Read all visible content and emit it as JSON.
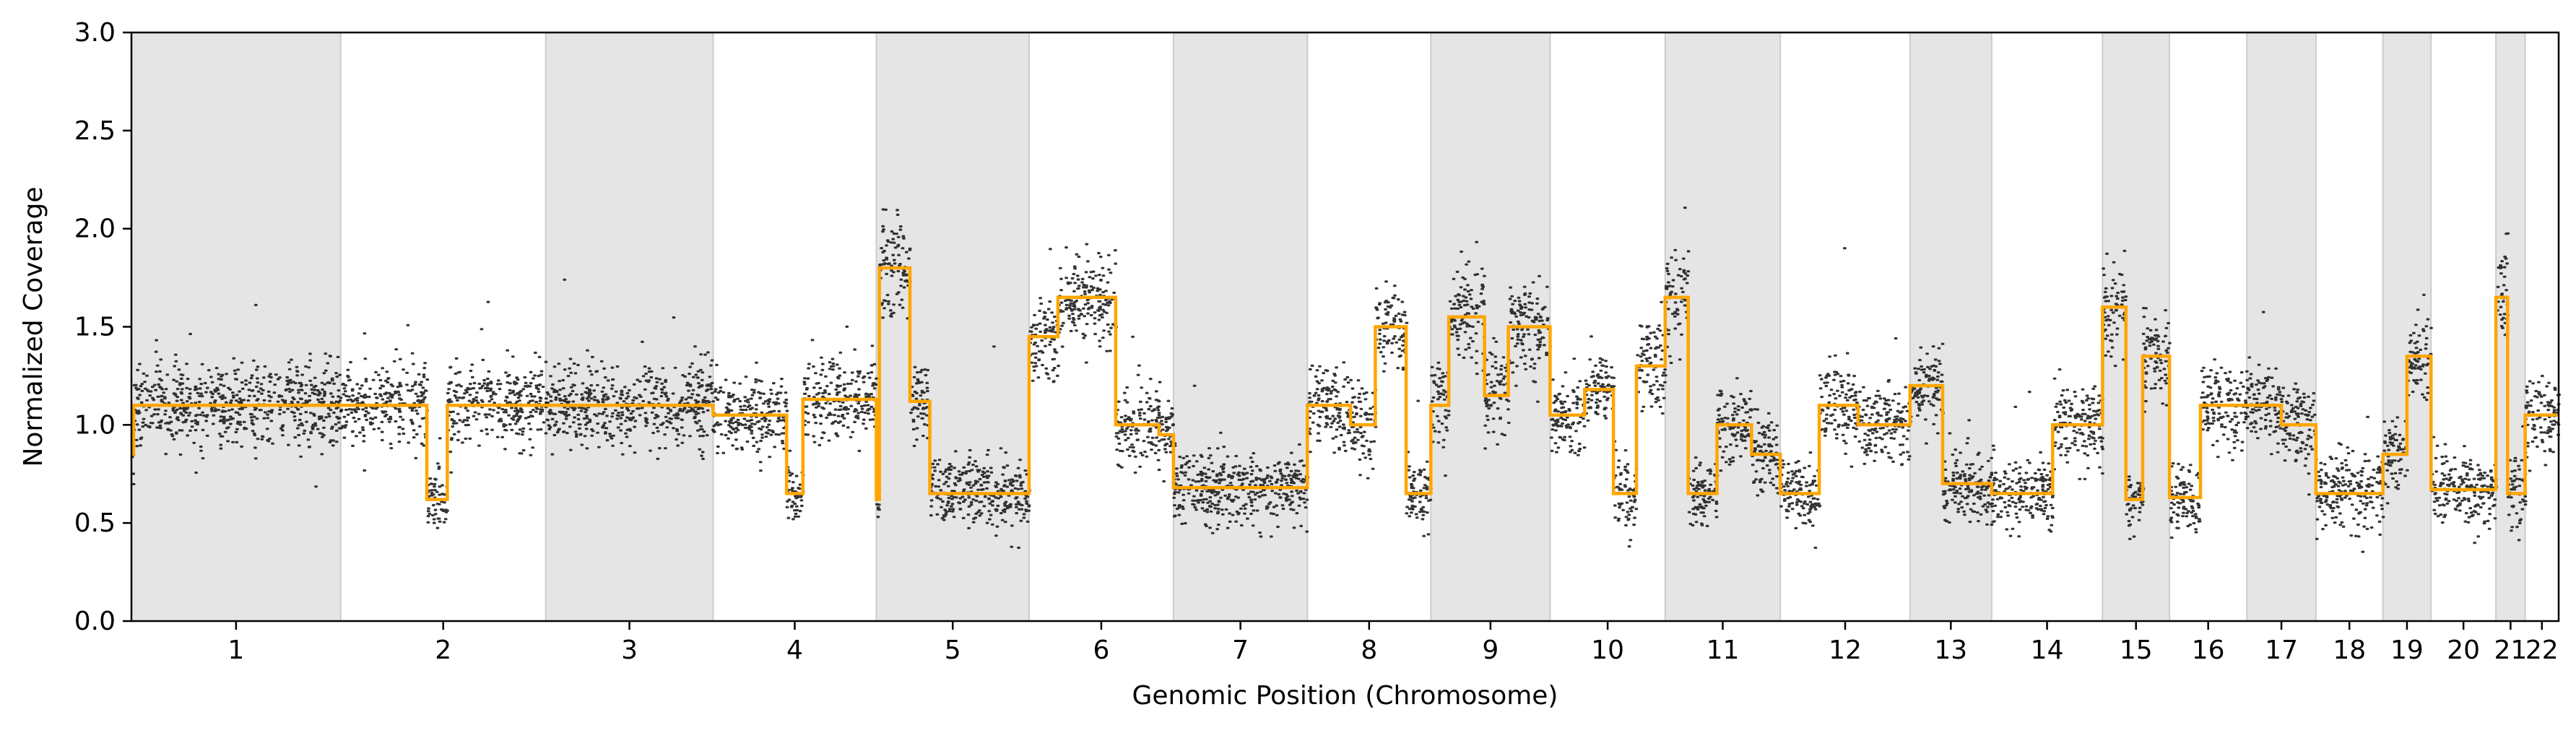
{
  "chart_data": {
    "type": "scatter",
    "title": "",
    "xlabel": "Genomic Position (Chromosome)",
    "ylabel": "Normalized Coverage",
    "ylim": [
      0,
      3.0
    ],
    "y_ticks": [
      "0.0",
      "0.5",
      "1.0",
      "1.5",
      "2.0",
      "2.5",
      "3.0"
    ],
    "grid": false,
    "legend": "none",
    "colors": {
      "points": "#111111",
      "segments": "#FFA500",
      "band": "#E5E5E5",
      "band_edge": "#CCCCCC"
    },
    "chromosomes": [
      {
        "label": "1",
        "span": 1.0,
        "shaded": true
      },
      {
        "label": "2",
        "span": 0.98,
        "shaded": false
      },
      {
        "label": "3",
        "span": 0.8,
        "shaded": true
      },
      {
        "label": "4",
        "span": 0.78,
        "shaded": false
      },
      {
        "label": "5",
        "span": 0.73,
        "shaded": true
      },
      {
        "label": "6",
        "span": 0.69,
        "shaded": false
      },
      {
        "label": "7",
        "span": 0.64,
        "shaded": true
      },
      {
        "label": "8",
        "span": 0.59,
        "shaded": false
      },
      {
        "label": "9",
        "span": 0.57,
        "shaded": true
      },
      {
        "label": "10",
        "span": 0.55,
        "shaded": false
      },
      {
        "label": "11",
        "span": 0.55,
        "shaded": true
      },
      {
        "label": "12",
        "span": 0.62,
        "shaded": false
      },
      {
        "label": "13",
        "span": 0.39,
        "shaded": true
      },
      {
        "label": "14",
        "span": 0.53,
        "shaded": false
      },
      {
        "label": "15",
        "span": 0.32,
        "shaded": true
      },
      {
        "label": "16",
        "span": 0.37,
        "shaded": false
      },
      {
        "label": "17",
        "span": 0.33,
        "shaded": true
      },
      {
        "label": "18",
        "span": 0.32,
        "shaded": false
      },
      {
        "label": "19",
        "span": 0.23,
        "shaded": true
      },
      {
        "label": "20",
        "span": 0.31,
        "shaded": false
      },
      {
        "label": "21",
        "span": 0.14,
        "shaded": true
      },
      {
        "label": "22",
        "span": 0.16,
        "shaded": false
      }
    ],
    "segments": [
      {
        "chrom": "1",
        "levels": [
          [
            0.0,
            0.01,
            0.85
          ],
          [
            0.01,
            0.48,
            1.1
          ],
          [
            0.48,
            0.62,
            1.1
          ],
          [
            0.62,
            1.0,
            1.1
          ]
        ]
      },
      {
        "chrom": "2",
        "levels": [
          [
            0.0,
            0.42,
            1.1
          ],
          [
            0.42,
            0.52,
            0.62
          ],
          [
            0.52,
            1.0,
            1.1
          ]
        ]
      },
      {
        "chrom": "3",
        "levels": [
          [
            0.0,
            1.0,
            1.1
          ]
        ]
      },
      {
        "chrom": "4",
        "levels": [
          [
            0.0,
            0.45,
            1.05
          ],
          [
            0.45,
            0.55,
            0.65
          ],
          [
            0.55,
            1.0,
            1.13
          ]
        ]
      },
      {
        "chrom": "5",
        "levels": [
          [
            0.0,
            0.02,
            0.62
          ],
          [
            0.02,
            0.22,
            1.8
          ],
          [
            0.22,
            0.35,
            1.12
          ],
          [
            0.35,
            1.0,
            0.65
          ]
        ]
      },
      {
        "chrom": "6",
        "levels": [
          [
            0.0,
            0.2,
            1.45
          ],
          [
            0.2,
            0.6,
            1.65
          ],
          [
            0.6,
            0.9,
            1.0
          ],
          [
            0.9,
            1.0,
            0.95
          ]
        ]
      },
      {
        "chrom": "7",
        "levels": [
          [
            0.0,
            0.25,
            0.68
          ],
          [
            0.25,
            1.0,
            0.68
          ]
        ]
      },
      {
        "chrom": "8",
        "levels": [
          [
            0.0,
            0.35,
            1.1
          ],
          [
            0.35,
            0.55,
            1.0
          ],
          [
            0.55,
            0.8,
            1.5
          ],
          [
            0.8,
            1.0,
            0.65
          ]
        ]
      },
      {
        "chrom": "9",
        "levels": [
          [
            0.0,
            0.15,
            1.1
          ],
          [
            0.15,
            0.45,
            1.55
          ],
          [
            0.45,
            0.65,
            1.15
          ],
          [
            0.65,
            1.0,
            1.5
          ]
        ]
      },
      {
        "chrom": "10",
        "levels": [
          [
            0.0,
            0.3,
            1.05
          ],
          [
            0.3,
            0.55,
            1.18
          ],
          [
            0.55,
            0.75,
            0.65
          ],
          [
            0.75,
            1.0,
            1.3
          ]
        ]
      },
      {
        "chrom": "11",
        "levels": [
          [
            0.0,
            0.2,
            1.65
          ],
          [
            0.2,
            0.45,
            0.65
          ],
          [
            0.45,
            0.75,
            1.0
          ],
          [
            0.75,
            1.0,
            0.85
          ]
        ]
      },
      {
        "chrom": "12",
        "levels": [
          [
            0.0,
            0.3,
            0.65
          ],
          [
            0.3,
            0.6,
            1.1
          ],
          [
            0.6,
            1.0,
            1.0
          ]
        ]
      },
      {
        "chrom": "13",
        "levels": [
          [
            0.0,
            0.4,
            1.2
          ],
          [
            0.4,
            1.0,
            0.7
          ]
        ]
      },
      {
        "chrom": "14",
        "levels": [
          [
            0.0,
            0.55,
            0.65
          ],
          [
            0.55,
            1.0,
            1.0
          ]
        ]
      },
      {
        "chrom": "15",
        "levels": [
          [
            0.0,
            0.35,
            1.6
          ],
          [
            0.35,
            0.6,
            0.62
          ],
          [
            0.6,
            1.0,
            1.35
          ]
        ]
      },
      {
        "chrom": "16",
        "levels": [
          [
            0.0,
            0.4,
            0.63
          ],
          [
            0.4,
            1.0,
            1.1
          ]
        ]
      },
      {
        "chrom": "17",
        "levels": [
          [
            0.0,
            0.5,
            1.1
          ],
          [
            0.5,
            1.0,
            1.0
          ]
        ]
      },
      {
        "chrom": "18",
        "levels": [
          [
            0.0,
            1.0,
            0.65
          ]
        ]
      },
      {
        "chrom": "19",
        "levels": [
          [
            0.0,
            0.5,
            0.85
          ],
          [
            0.5,
            1.0,
            1.35
          ]
        ]
      },
      {
        "chrom": "20",
        "levels": [
          [
            0.0,
            1.0,
            0.67
          ]
        ]
      },
      {
        "chrom": "21",
        "levels": [
          [
            0.0,
            0.4,
            1.65
          ],
          [
            0.4,
            1.0,
            0.65
          ]
        ]
      },
      {
        "chrom": "22",
        "levels": [
          [
            0.0,
            0.5,
            1.05
          ],
          [
            0.5,
            1.0,
            1.05
          ]
        ]
      }
    ]
  }
}
